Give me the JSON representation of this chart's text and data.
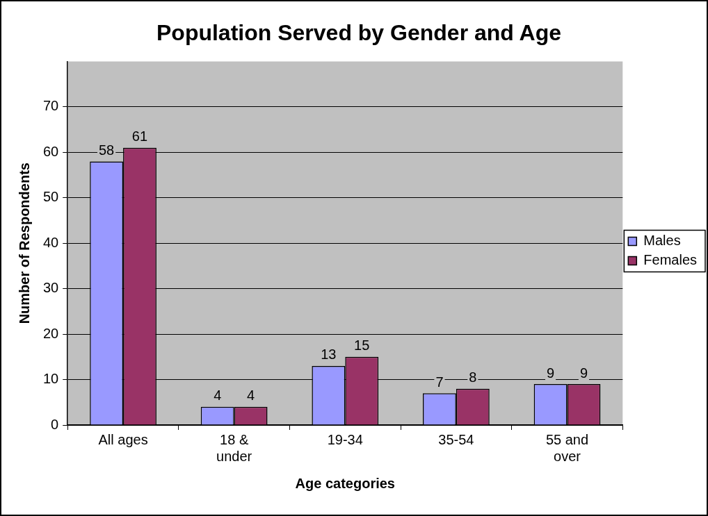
{
  "chart_data": {
    "type": "bar",
    "title": "Population Served by Gender and Age",
    "xlabel": "Age categories",
    "ylabel": "Number of Respondents",
    "categories": [
      "All ages",
      "18 & under",
      "19-34",
      "35-54",
      "55 and over"
    ],
    "series": [
      {
        "name": "Males",
        "color": "#9999ff",
        "values": [
          58,
          4,
          13,
          7,
          9
        ]
      },
      {
        "name": "Females",
        "color": "#993366",
        "values": [
          61,
          4,
          15,
          8,
          9
        ]
      }
    ],
    "ylim": [
      0,
      80
    ],
    "yticks": [
      0,
      10,
      20,
      30,
      40,
      50,
      60,
      70
    ],
    "grid": "y",
    "legend": "right",
    "data_labels": true
  }
}
